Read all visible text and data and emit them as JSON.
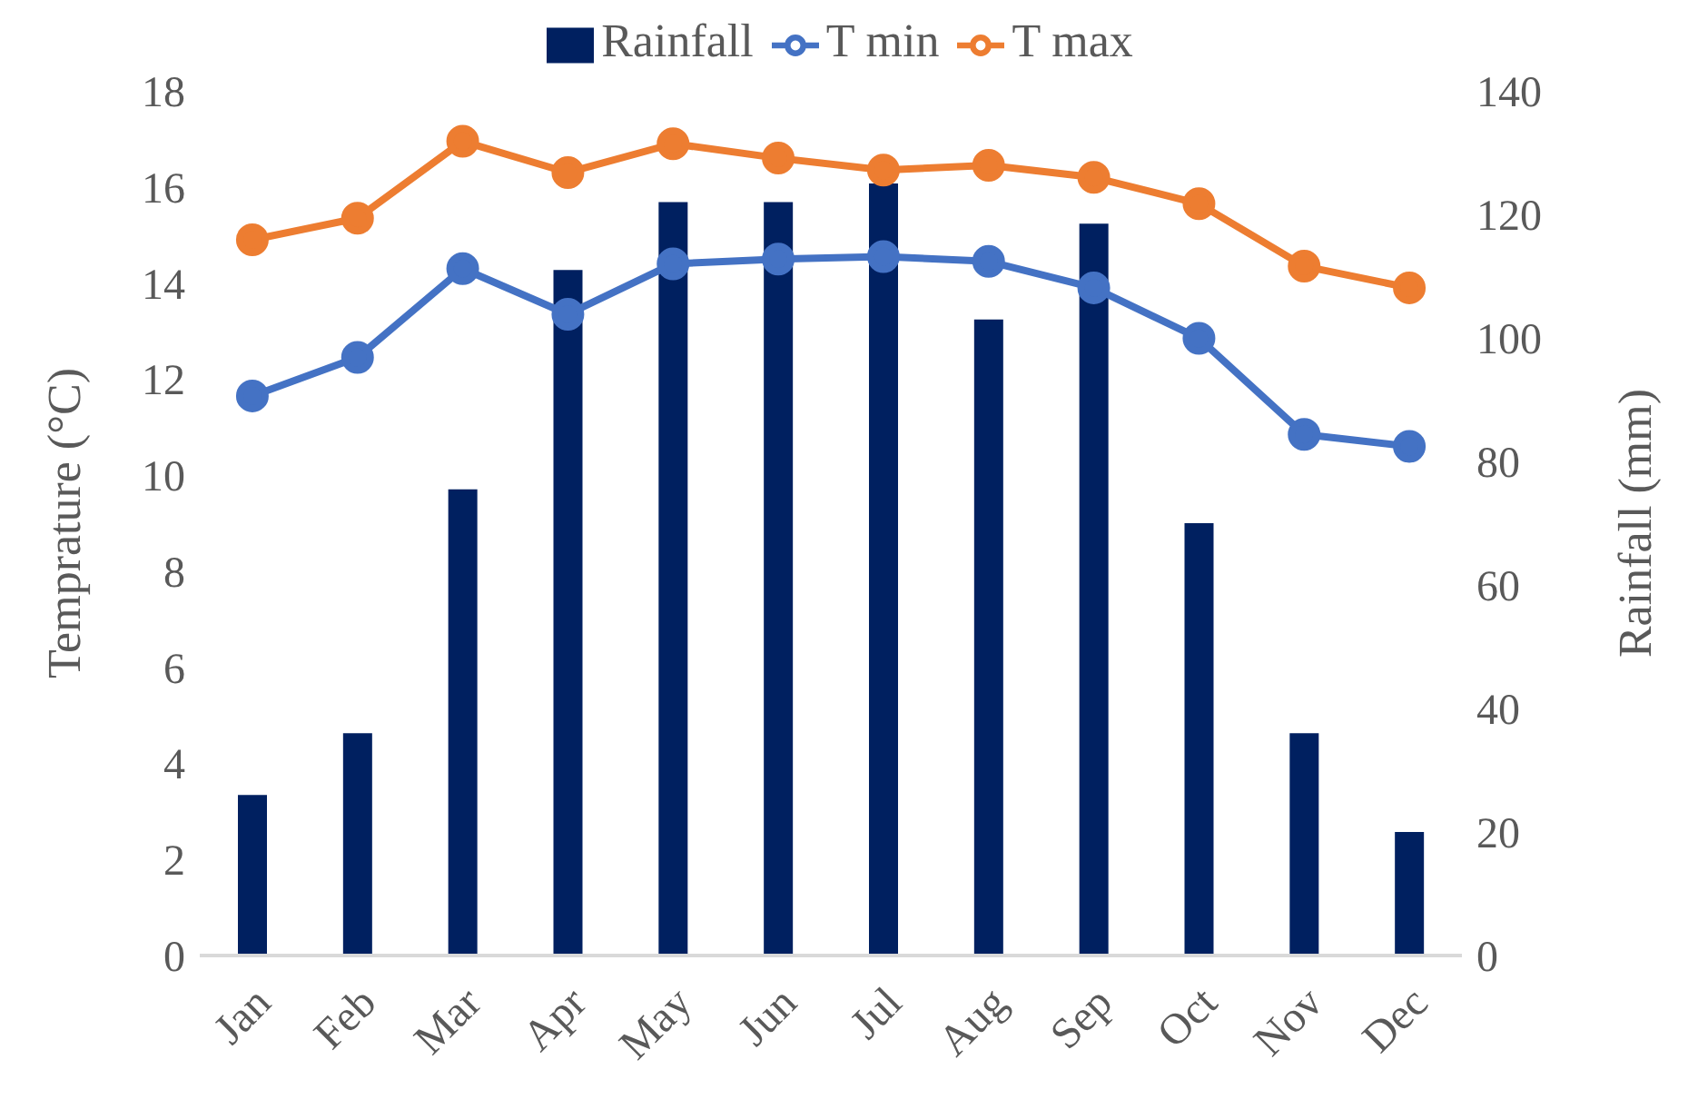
{
  "chart_data": {
    "type": "bar",
    "categories": [
      "Jan",
      "Feb",
      "Mar",
      "Apr",
      "May",
      "Jun",
      "Jul",
      "Aug",
      "Sep",
      "Oct",
      "Nov",
      "Dec"
    ],
    "ylabel": "Temprature (°C)",
    "y2label": "Rainfall (mm)",
    "ylim": [
      0,
      18
    ],
    "yticks": [
      0,
      2,
      4,
      6,
      8,
      10,
      12,
      14,
      16,
      18
    ],
    "y2lim": [
      0,
      140
    ],
    "y2ticks": [
      0,
      20,
      40,
      60,
      80,
      100,
      120,
      140
    ],
    "grid": false,
    "legend": "top",
    "marker": "circle",
    "series": [
      {
        "name": "Rainfall",
        "axis": "y2",
        "color": "#002060",
        "values": [
          26,
          36,
          75.5,
          111,
          122,
          122,
          125,
          103,
          118.5,
          70,
          36,
          20
        ]
      },
      {
        "name": "T min",
        "type": "line",
        "color": "#4472c4",
        "values": [
          11.65,
          12.45,
          14.3,
          13.35,
          14.4,
          14.5,
          14.55,
          14.45,
          13.9,
          12.85,
          10.85,
          10.6
        ]
      },
      {
        "name": "T max",
        "type": "line",
        "color": "#ed7d31",
        "values": [
          14.9,
          15.35,
          16.95,
          16.3,
          16.9,
          16.6,
          16.35,
          16.45,
          16.2,
          15.65,
          14.35,
          13.9
        ]
      }
    ]
  }
}
